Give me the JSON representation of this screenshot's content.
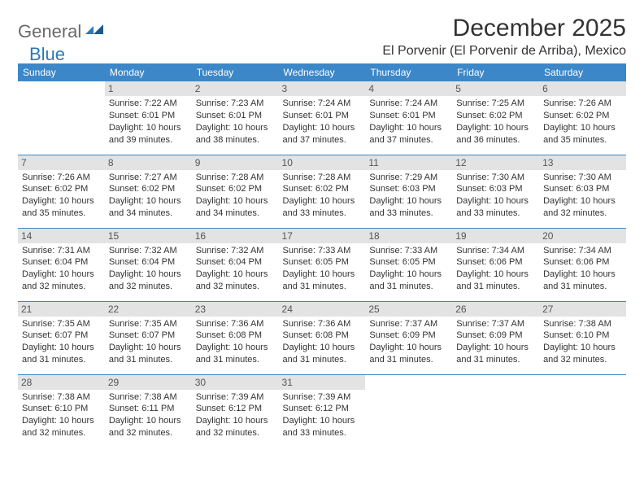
{
  "logo": {
    "part1": "General",
    "part2": "Blue"
  },
  "title": "December 2025",
  "location": "El Porvenir (El Porvenir de Arriba), Mexico",
  "header_bg": "#3b87c8",
  "header_fg": "#ffffff",
  "daynum_bg": "#e3e3e3",
  "row_border": "#3b87c8",
  "text_color": "#333333",
  "fontsize_title": 30,
  "fontsize_location": 16,
  "fontsize_header": 12,
  "fontsize_cell": 11,
  "day_names": [
    "Sunday",
    "Monday",
    "Tuesday",
    "Wednesday",
    "Thursday",
    "Friday",
    "Saturday"
  ],
  "weeks": [
    [
      {
        "n": "",
        "sr": "",
        "ss": "",
        "dl": ""
      },
      {
        "n": "1",
        "sr": "7:22 AM",
        "ss": "6:01 PM",
        "dl": "10 hours and 39 minutes."
      },
      {
        "n": "2",
        "sr": "7:23 AM",
        "ss": "6:01 PM",
        "dl": "10 hours and 38 minutes."
      },
      {
        "n": "3",
        "sr": "7:24 AM",
        "ss": "6:01 PM",
        "dl": "10 hours and 37 minutes."
      },
      {
        "n": "4",
        "sr": "7:24 AM",
        "ss": "6:01 PM",
        "dl": "10 hours and 37 minutes."
      },
      {
        "n": "5",
        "sr": "7:25 AM",
        "ss": "6:02 PM",
        "dl": "10 hours and 36 minutes."
      },
      {
        "n": "6",
        "sr": "7:26 AM",
        "ss": "6:02 PM",
        "dl": "10 hours and 35 minutes."
      }
    ],
    [
      {
        "n": "7",
        "sr": "7:26 AM",
        "ss": "6:02 PM",
        "dl": "10 hours and 35 minutes."
      },
      {
        "n": "8",
        "sr": "7:27 AM",
        "ss": "6:02 PM",
        "dl": "10 hours and 34 minutes."
      },
      {
        "n": "9",
        "sr": "7:28 AM",
        "ss": "6:02 PM",
        "dl": "10 hours and 34 minutes."
      },
      {
        "n": "10",
        "sr": "7:28 AM",
        "ss": "6:02 PM",
        "dl": "10 hours and 33 minutes."
      },
      {
        "n": "11",
        "sr": "7:29 AM",
        "ss": "6:03 PM",
        "dl": "10 hours and 33 minutes."
      },
      {
        "n": "12",
        "sr": "7:30 AM",
        "ss": "6:03 PM",
        "dl": "10 hours and 33 minutes."
      },
      {
        "n": "13",
        "sr": "7:30 AM",
        "ss": "6:03 PM",
        "dl": "10 hours and 32 minutes."
      }
    ],
    [
      {
        "n": "14",
        "sr": "7:31 AM",
        "ss": "6:04 PM",
        "dl": "10 hours and 32 minutes."
      },
      {
        "n": "15",
        "sr": "7:32 AM",
        "ss": "6:04 PM",
        "dl": "10 hours and 32 minutes."
      },
      {
        "n": "16",
        "sr": "7:32 AM",
        "ss": "6:04 PM",
        "dl": "10 hours and 32 minutes."
      },
      {
        "n": "17",
        "sr": "7:33 AM",
        "ss": "6:05 PM",
        "dl": "10 hours and 31 minutes."
      },
      {
        "n": "18",
        "sr": "7:33 AM",
        "ss": "6:05 PM",
        "dl": "10 hours and 31 minutes."
      },
      {
        "n": "19",
        "sr": "7:34 AM",
        "ss": "6:06 PM",
        "dl": "10 hours and 31 minutes."
      },
      {
        "n": "20",
        "sr": "7:34 AM",
        "ss": "6:06 PM",
        "dl": "10 hours and 31 minutes."
      }
    ],
    [
      {
        "n": "21",
        "sr": "7:35 AM",
        "ss": "6:07 PM",
        "dl": "10 hours and 31 minutes."
      },
      {
        "n": "22",
        "sr": "7:35 AM",
        "ss": "6:07 PM",
        "dl": "10 hours and 31 minutes."
      },
      {
        "n": "23",
        "sr": "7:36 AM",
        "ss": "6:08 PM",
        "dl": "10 hours and 31 minutes."
      },
      {
        "n": "24",
        "sr": "7:36 AM",
        "ss": "6:08 PM",
        "dl": "10 hours and 31 minutes."
      },
      {
        "n": "25",
        "sr": "7:37 AM",
        "ss": "6:09 PM",
        "dl": "10 hours and 31 minutes."
      },
      {
        "n": "26",
        "sr": "7:37 AM",
        "ss": "6:09 PM",
        "dl": "10 hours and 31 minutes."
      },
      {
        "n": "27",
        "sr": "7:38 AM",
        "ss": "6:10 PM",
        "dl": "10 hours and 32 minutes."
      }
    ],
    [
      {
        "n": "28",
        "sr": "7:38 AM",
        "ss": "6:10 PM",
        "dl": "10 hours and 32 minutes."
      },
      {
        "n": "29",
        "sr": "7:38 AM",
        "ss": "6:11 PM",
        "dl": "10 hours and 32 minutes."
      },
      {
        "n": "30",
        "sr": "7:39 AM",
        "ss": "6:12 PM",
        "dl": "10 hours and 32 minutes."
      },
      {
        "n": "31",
        "sr": "7:39 AM",
        "ss": "6:12 PM",
        "dl": "10 hours and 33 minutes."
      },
      {
        "n": "",
        "sr": "",
        "ss": "",
        "dl": ""
      },
      {
        "n": "",
        "sr": "",
        "ss": "",
        "dl": ""
      },
      {
        "n": "",
        "sr": "",
        "ss": "",
        "dl": ""
      }
    ]
  ],
  "labels": {
    "sunrise": "Sunrise:",
    "sunset": "Sunset:",
    "daylight": "Daylight:"
  }
}
